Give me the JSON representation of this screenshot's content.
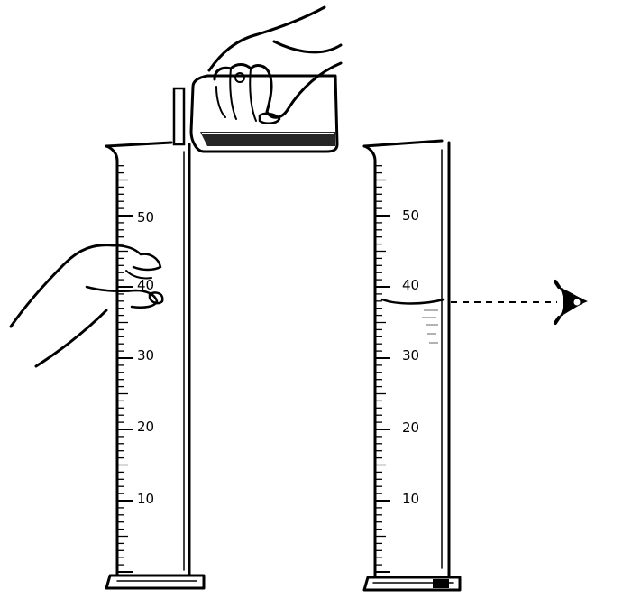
{
  "figure": {
    "ink_color": "#000000",
    "background": "#ffffff"
  },
  "cylinder_left": {
    "scale_labels": [
      "50",
      "40",
      "30",
      "20",
      "10"
    ]
  },
  "cylinder_right": {
    "scale_labels": [
      "50",
      "40",
      "30",
      "20",
      "10"
    ],
    "liquid_level_ml": 38
  },
  "icons": {
    "eye": "eye-icon",
    "hand": "hand-icon",
    "beaker": "beaker-icon"
  }
}
